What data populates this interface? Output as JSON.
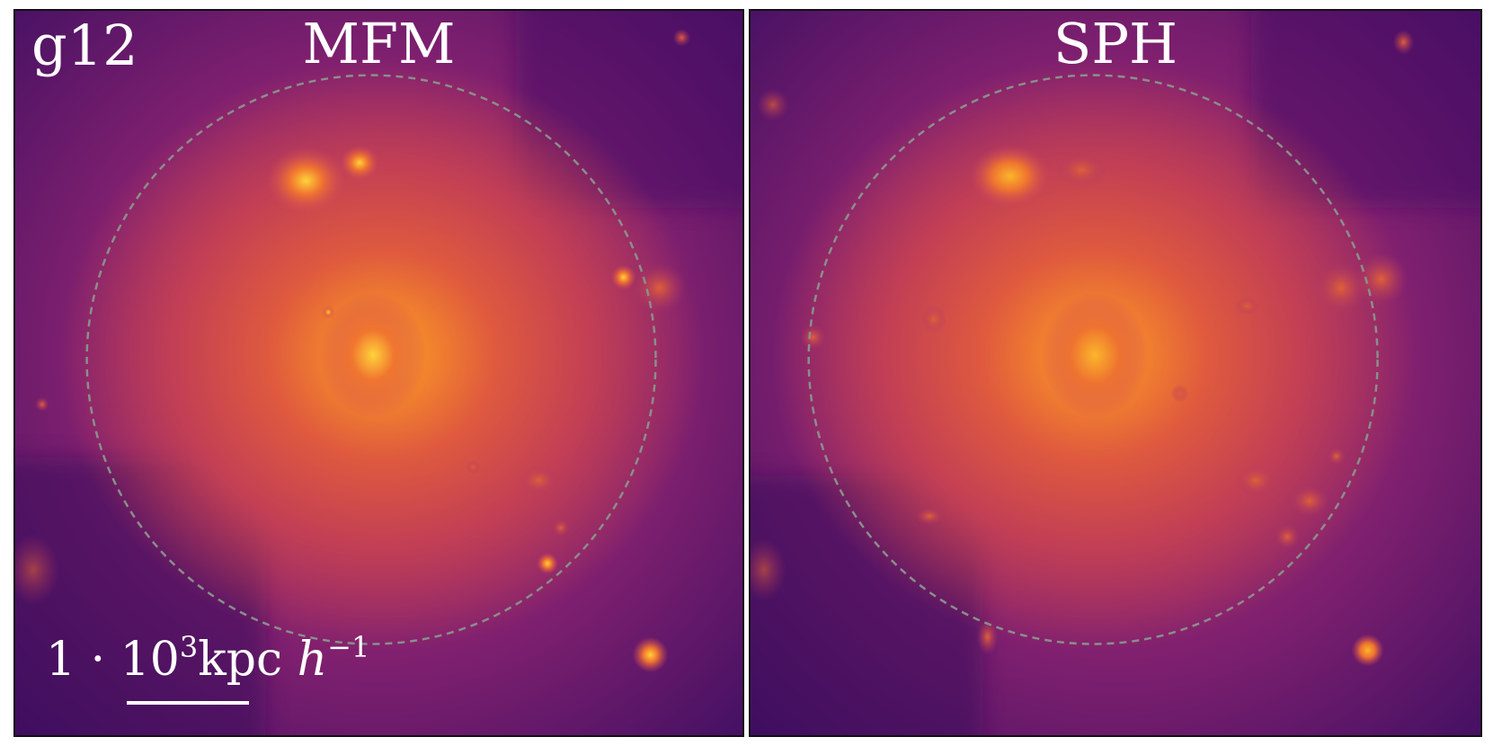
{
  "figure": {
    "simulation_label": "g12",
    "panels": [
      {
        "title": "MFM"
      },
      {
        "title": "SPH"
      }
    ],
    "scale_bar": {
      "prefix": "1 · 10",
      "exponent": "3",
      "unit": "kpc",
      "h": "h",
      "h_exponent": "−1"
    },
    "colors": {
      "background_deep": "#3a0c5e",
      "background_mid": "#6a1a72",
      "halo_outer": "#c2385a",
      "halo_mid": "#e8653a",
      "halo_core": "#fcb11c",
      "circle": "#8a8f8a",
      "frame": "#111111",
      "text": "#ffffff"
    }
  }
}
